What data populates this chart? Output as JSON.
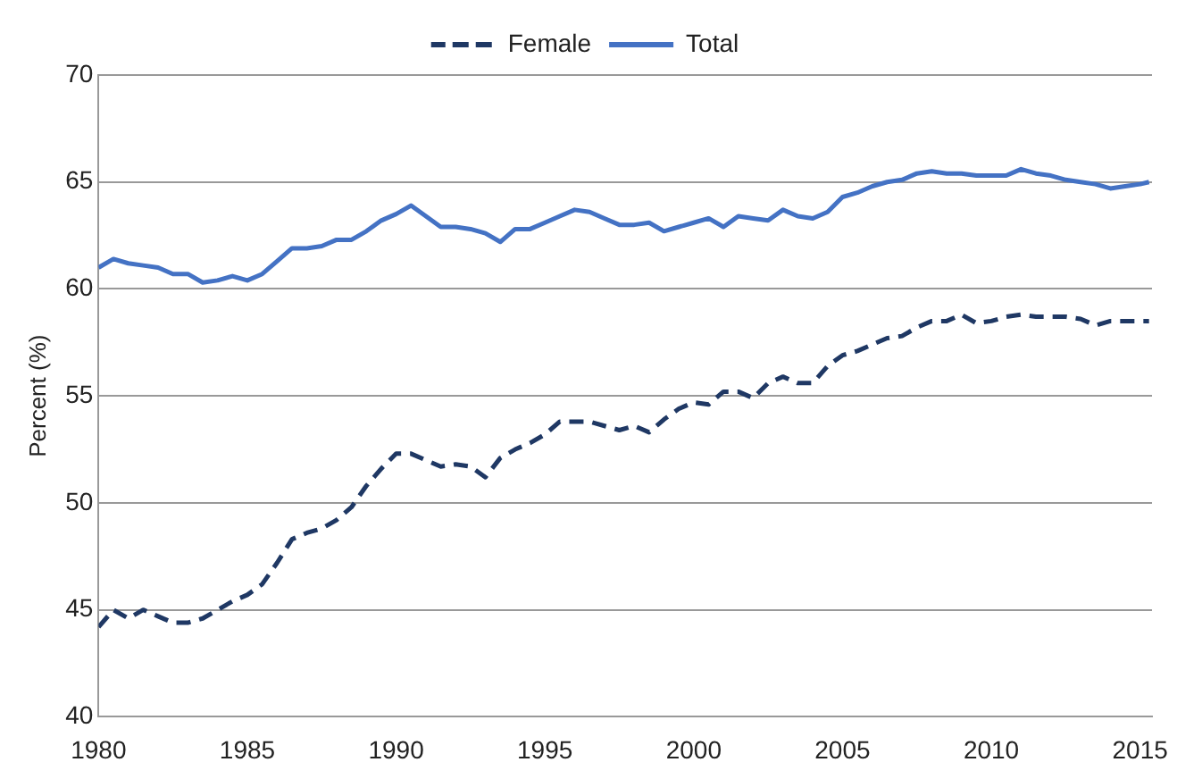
{
  "chart_data": {
    "type": "line",
    "ylabel": "Percent (%)",
    "x": [
      1980,
      1980.5,
      1981,
      1981.5,
      1982,
      1982.5,
      1983,
      1983.5,
      1984,
      1984.5,
      1985,
      1985.5,
      1986,
      1986.5,
      1987,
      1987.5,
      1988,
      1988.5,
      1989,
      1989.5,
      1990,
      1990.5,
      1991,
      1991.5,
      1992,
      1992.5,
      1993,
      1993.5,
      1994,
      1994.5,
      1995,
      1995.5,
      1996,
      1996.5,
      1997,
      1997.5,
      1998,
      1998.5,
      1999,
      1999.5,
      2000,
      2000.5,
      2001,
      2001.5,
      2002,
      2002.5,
      2003,
      2003.5,
      2004,
      2004.5,
      2005,
      2005.5,
      2006,
      2006.5,
      2007,
      2007.5,
      2008,
      2008.5,
      2009,
      2009.5,
      2010,
      2010.5,
      2011,
      2011.5,
      2012,
      2012.5,
      2013,
      2013.5,
      2014,
      2014.5,
      2015,
      2015.3
    ],
    "series": [
      {
        "name": "Female",
        "color": "#1f3864",
        "line_style": "dashed",
        "values": [
          44.2,
          45.0,
          44.6,
          45.0,
          44.7,
          44.4,
          44.4,
          44.6,
          45.0,
          45.4,
          45.7,
          46.2,
          47.2,
          48.3,
          48.6,
          48.8,
          49.2,
          49.8,
          50.8,
          51.6,
          52.3,
          52.3,
          52.0,
          51.7,
          51.8,
          51.7,
          51.2,
          52.1,
          52.5,
          52.8,
          53.2,
          53.8,
          53.8,
          53.8,
          53.6,
          53.4,
          53.6,
          53.3,
          53.9,
          54.4,
          54.7,
          54.6,
          55.2,
          55.2,
          54.9,
          55.6,
          55.9,
          55.6,
          55.6,
          56.4,
          56.9,
          57.1,
          57.4,
          57.7,
          57.8,
          58.2,
          58.5,
          58.5,
          58.8,
          58.4,
          58.5,
          58.7,
          58.8,
          58.7,
          58.7,
          58.7,
          58.6,
          58.3,
          58.5,
          58.5,
          58.5,
          58.5
        ]
      },
      {
        "name": "Total",
        "color": "#4472c4",
        "line_style": "solid",
        "values": [
          61.0,
          61.4,
          61.2,
          61.1,
          61.0,
          60.7,
          60.7,
          60.3,
          60.4,
          60.6,
          60.4,
          60.7,
          61.3,
          61.9,
          61.9,
          62.0,
          62.3,
          62.3,
          62.7,
          63.2,
          63.5,
          63.9,
          63.4,
          62.9,
          62.9,
          62.8,
          62.6,
          62.2,
          62.8,
          62.8,
          63.1,
          63.4,
          63.7,
          63.6,
          63.3,
          63.0,
          63.0,
          63.1,
          62.7,
          62.9,
          63.1,
          63.3,
          62.9,
          63.4,
          63.3,
          63.2,
          63.7,
          63.4,
          63.3,
          63.6,
          64.3,
          64.5,
          64.8,
          65.0,
          65.1,
          65.4,
          65.5,
          65.4,
          65.4,
          65.3,
          65.3,
          65.3,
          65.6,
          65.4,
          65.3,
          65.1,
          65.0,
          64.9,
          64.7,
          64.8,
          64.9,
          65.0
        ]
      }
    ],
    "xlim": [
      1980,
      2015.4
    ],
    "xticks": [
      1980,
      1985,
      1990,
      1995,
      2000,
      2005,
      2010,
      2015
    ],
    "ylim": [
      40,
      70
    ],
    "yticks": [
      40,
      45,
      50,
      55,
      60,
      65,
      70
    ],
    "grid": "y",
    "legend": "top",
    "marker": "none"
  }
}
